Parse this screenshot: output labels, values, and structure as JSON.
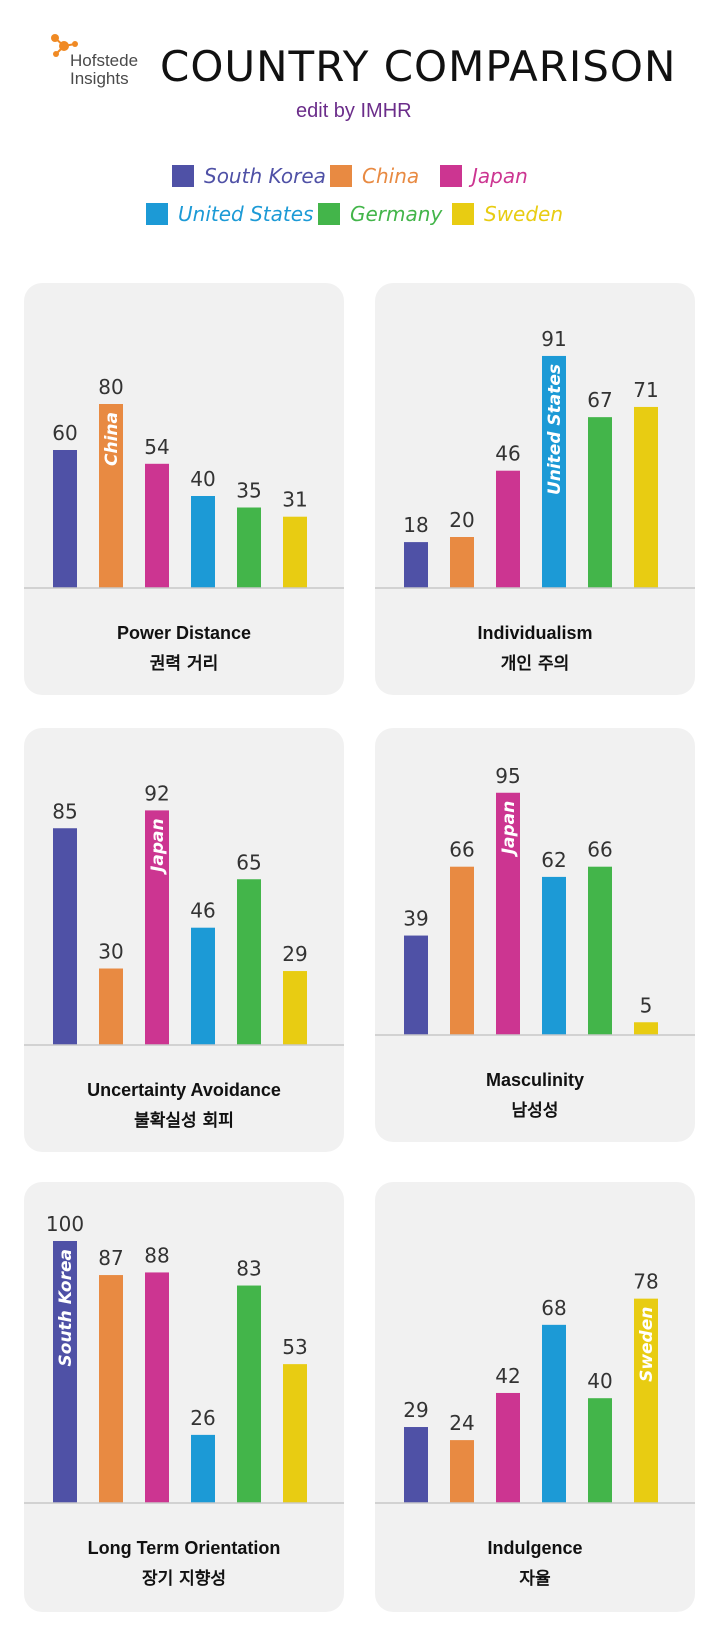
{
  "header": {
    "logo_line1": "Hofstede",
    "logo_line2": "Insights",
    "title": "COUNTRY COMPARISON",
    "subtitle": "edit by IMHR"
  },
  "colors": {
    "South Korea": "#4f51a6",
    "China": "#e88a42",
    "Japan": "#cc3591",
    "United States": "#1c9ad6",
    "Germany": "#43b54a",
    "Sweden": "#e8cc12"
  },
  "legend": [
    {
      "name": "South Korea",
      "color": "#4f51a6",
      "text_color": "#4f51a6"
    },
    {
      "name": "China",
      "color": "#e88a42",
      "text_color": "#e88a42"
    },
    {
      "name": "Japan",
      "color": "#cc3591",
      "text_color": "#cc3591"
    },
    {
      "name": "United States",
      "color": "#1c9ad6",
      "text_color": "#1c9ad6"
    },
    {
      "name": "Germany",
      "color": "#43b54a",
      "text_color": "#43b54a"
    },
    {
      "name": "Sweden",
      "color": "#e8cc12",
      "text_color": "#e8cc12"
    }
  ],
  "chart_data": [
    {
      "type": "bar",
      "title": "Power Distance",
      "subtitle": "권력 거리",
      "categories": [
        "South Korea",
        "China",
        "Japan",
        "United States",
        "Germany",
        "Sweden"
      ],
      "values": [
        60,
        80,
        54,
        40,
        35,
        31
      ],
      "highlight": "China",
      "ylim": [
        0,
        100
      ]
    },
    {
      "type": "bar",
      "title": "Individualism",
      "subtitle": "개인 주의",
      "categories": [
        "South Korea",
        "China",
        "Japan",
        "United States",
        "Germany",
        "Sweden"
      ],
      "values": [
        18,
        20,
        46,
        91,
        67,
        71
      ],
      "highlight": "United States",
      "ylim": [
        0,
        100
      ]
    },
    {
      "type": "bar",
      "title": "Uncertainty Avoidance",
      "subtitle": "불확실성 회피",
      "categories": [
        "South Korea",
        "China",
        "Japan",
        "United States",
        "Germany",
        "Sweden"
      ],
      "values": [
        85,
        30,
        92,
        46,
        65,
        29
      ],
      "highlight": "Japan",
      "ylim": [
        0,
        100
      ]
    },
    {
      "type": "bar",
      "title": "Masculinity",
      "subtitle": "남성성",
      "categories": [
        "South Korea",
        "China",
        "Japan",
        "United States",
        "Germany",
        "Sweden"
      ],
      "values": [
        39,
        66,
        95,
        62,
        66,
        5
      ],
      "highlight": "Japan",
      "ylim": [
        0,
        100
      ]
    },
    {
      "type": "bar",
      "title": "Long Term Orientation",
      "subtitle": "장기 지향성",
      "categories": [
        "South Korea",
        "China",
        "Japan",
        "United States",
        "Germany",
        "Sweden"
      ],
      "values": [
        100,
        87,
        88,
        26,
        83,
        53
      ],
      "highlight": "South Korea",
      "ylim": [
        0,
        100
      ]
    },
    {
      "type": "bar",
      "title": "Indulgence",
      "subtitle": "자율",
      "categories": [
        "South Korea",
        "China",
        "Japan",
        "United States",
        "Germany",
        "Sweden"
      ],
      "values": [
        29,
        24,
        42,
        68,
        40,
        78
      ],
      "highlight": "Sweden",
      "ylim": [
        0,
        100
      ]
    }
  ]
}
